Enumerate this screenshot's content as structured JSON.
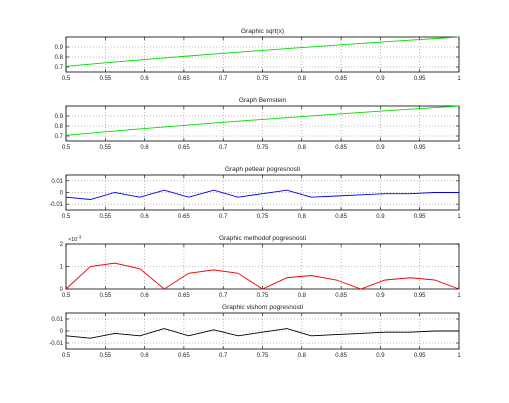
{
  "chart_data": [
    {
      "type": "line",
      "title": "Graphic sqrt(x)",
      "xlim": [
        0.5,
        1.0
      ],
      "ylim": [
        0.65,
        1.0
      ],
      "yticks": [
        0.7,
        0.8,
        0.9
      ],
      "ytick_labels": [
        "0.7",
        "0.8",
        "0.9"
      ],
      "color": "#00dd00",
      "series": [
        {
          "x": [
            0.5,
            0.525,
            0.55,
            0.575,
            0.6,
            0.625,
            0.65,
            0.675,
            0.7,
            0.725,
            0.75,
            0.775,
            0.8,
            0.825,
            0.85,
            0.875,
            0.9,
            0.925,
            0.95,
            0.975,
            1.0
          ],
          "y": [
            0.7071,
            0.7246,
            0.7416,
            0.7583,
            0.7746,
            0.7906,
            0.8062,
            0.8216,
            0.8367,
            0.8515,
            0.866,
            0.8803,
            0.8944,
            0.9083,
            0.922,
            0.9354,
            0.9487,
            0.9618,
            0.9747,
            0.9874,
            1.0
          ]
        }
      ]
    },
    {
      "type": "line",
      "title": "Graph Bernstein",
      "xlim": [
        0.5,
        1.0
      ],
      "ylim": [
        0.65,
        1.0
      ],
      "yticks": [
        0.7,
        0.8,
        0.9
      ],
      "ytick_labels": [
        "0.7",
        "0.8",
        "0.9"
      ],
      "color": "#00dd00",
      "series": [
        {
          "x": [
            0.5,
            0.525,
            0.55,
            0.575,
            0.6,
            0.625,
            0.65,
            0.675,
            0.7,
            0.725,
            0.75,
            0.775,
            0.8,
            0.825,
            0.85,
            0.875,
            0.9,
            0.925,
            0.95,
            0.975,
            1.0
          ],
          "y": [
            0.707,
            0.7245,
            0.7415,
            0.7582,
            0.7745,
            0.7905,
            0.8061,
            0.8215,
            0.8366,
            0.8514,
            0.8659,
            0.8802,
            0.8943,
            0.9082,
            0.9219,
            0.9353,
            0.9486,
            0.9617,
            0.9746,
            0.9873,
            1.0
          ]
        }
      ]
    },
    {
      "type": "line",
      "title": "Graph petlear pogresnosti",
      "xlim": [
        0.5,
        1.0
      ],
      "ylim": [
        -0.015,
        0.015
      ],
      "yticks": [
        -0.01,
        0,
        0.01
      ],
      "ytick_labels": [
        "-0.01",
        "0",
        "0.01"
      ],
      "color": "#0000ee",
      "series": [
        {
          "x": [
            0.5,
            0.531,
            0.562,
            0.594,
            0.625,
            0.656,
            0.688,
            0.719,
            0.75,
            0.781,
            0.812,
            0.844,
            0.875,
            0.906,
            0.938,
            0.969,
            1.0
          ],
          "y": [
            -0.004,
            -0.006,
            0.0,
            -0.004,
            0.002,
            -0.004,
            0.002,
            -0.004,
            -0.001,
            0.002,
            -0.004,
            -0.003,
            -0.002,
            -0.001,
            -0.001,
            0.0,
            0.0
          ]
        }
      ]
    },
    {
      "type": "line",
      "title": "Graphic methodof pogresnosti",
      "xlim": [
        0.5,
        1.0
      ],
      "ylim": [
        0,
        0.002
      ],
      "yticks": [
        0,
        0.001,
        0.002
      ],
      "ytick_labels": [
        "0",
        "1",
        "2"
      ],
      "y_exponent_label": "-3",
      "color": "#ee0000",
      "series": [
        {
          "x": [
            0.5,
            0.531,
            0.562,
            0.594,
            0.625,
            0.656,
            0.688,
            0.719,
            0.75,
            0.781,
            0.812,
            0.844,
            0.875,
            0.906,
            0.938,
            0.969,
            1.0
          ],
          "y": [
            0.0,
            0.001,
            0.00115,
            0.0009,
            0.0,
            0.0007,
            0.00085,
            0.0007,
            0.0,
            0.0005,
            0.0006,
            0.0004,
            0.0,
            0.0004,
            0.0005,
            0.0004,
            0.0
          ]
        }
      ]
    },
    {
      "type": "line",
      "title": "Graphic vishorn pogresnosti",
      "xlim": [
        0.5,
        1.0
      ],
      "ylim": [
        -0.015,
        0.015
      ],
      "yticks": [
        -0.01,
        0,
        0.01
      ],
      "ytick_labels": [
        "-0.01",
        "0",
        "0.01"
      ],
      "color": "#000000",
      "series": [
        {
          "x": [
            0.5,
            0.531,
            0.562,
            0.594,
            0.625,
            0.656,
            0.688,
            0.719,
            0.75,
            0.781,
            0.812,
            0.844,
            0.875,
            0.906,
            0.938,
            0.969,
            1.0
          ],
          "y": [
            -0.004,
            -0.006,
            -0.002,
            -0.004,
            0.002,
            -0.004,
            0.001,
            -0.004,
            -0.001,
            0.002,
            -0.004,
            -0.003,
            -0.002,
            -0.001,
            -0.001,
            0.0,
            0.0
          ]
        }
      ]
    }
  ],
  "x_axis": {
    "ticks": [
      0.5,
      0.55,
      0.6,
      0.65,
      0.7,
      0.75,
      0.8,
      0.85,
      0.9,
      0.95,
      1.0
    ],
    "tick_labels": [
      "0.5",
      "0.55",
      "0.6",
      "0.65",
      "0.7",
      "0.75",
      "0.8",
      "0.85",
      "0.9",
      "0.95",
      "1"
    ]
  },
  "grid": true
}
